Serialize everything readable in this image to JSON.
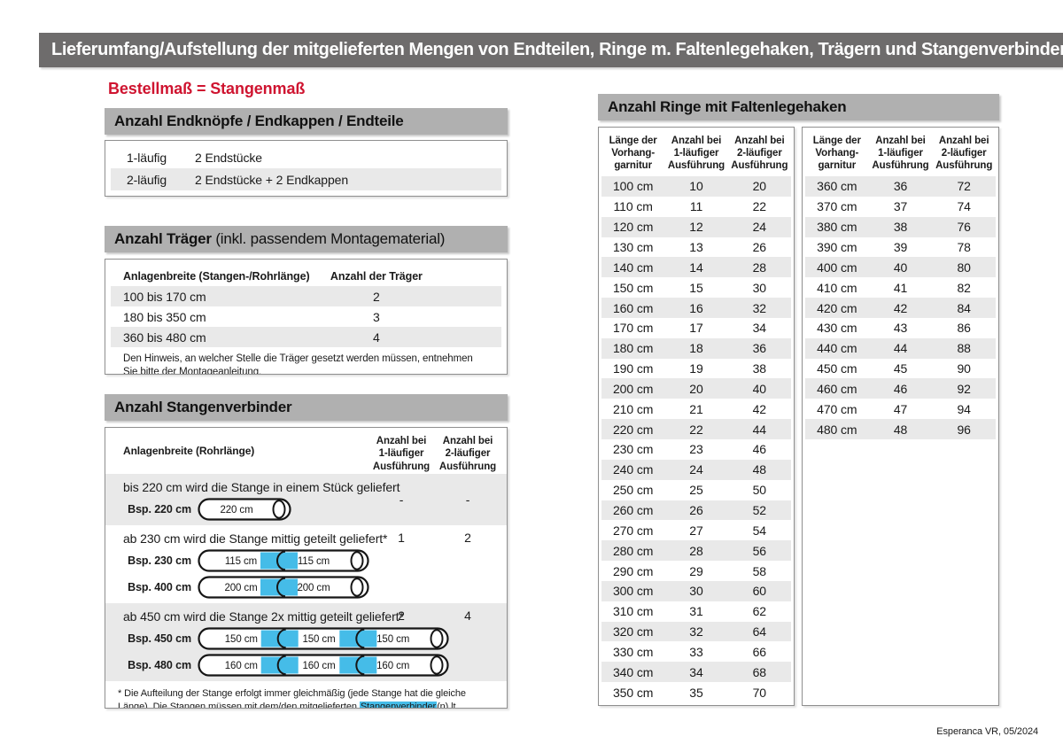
{
  "colors": {
    "banner_gray": "#6e6c6c",
    "section_bar_gray": "#b0b0b0",
    "row_stripe": "#e9e9e9",
    "accent_red": "#cf1430",
    "connector_blue": "#45bce8"
  },
  "banner": {
    "title": "Lieferumfang/Aufstellung der mitgelieferten Mengen von Endteilen, Ringe m. Faltenlegehaken, Trägern und Stangenverbindern:"
  },
  "subtitle": "Bestellmaß = Stangenmaß",
  "endteile": {
    "title": "Anzahl Endknöpfe / Endkappen / Endteile",
    "rows": [
      {
        "label": "1-läufig",
        "value": "2 Endstücke"
      },
      {
        "label": "2-läufig",
        "value": "2 Endstücke + 2 Endkappen"
      }
    ]
  },
  "traeger": {
    "title": "Anzahl Träger",
    "title_suffix": " (inkl. passendem Montagematerial)",
    "col1": "Anlagenbreite (Stangen-/Rohrlänge)",
    "col2": "Anzahl der Träger",
    "rows": [
      {
        "range": "100 bis 170 cm",
        "count": "2"
      },
      {
        "range": "180 bis 350 cm",
        "count": "3"
      },
      {
        "range": "360 bis 480 cm",
        "count": "4"
      }
    ],
    "note": "Den Hinweis, an welcher Stelle die Träger gesetzt werden müssen, entnehmen Sie bitte der Montageanleitung."
  },
  "verbinder": {
    "title": "Anzahl Stangenverbinder",
    "col1": "Anlagenbreite (Rohrlänge)",
    "col2": "Anzahl bei\n1-läufiger\nAusführung",
    "col3": "Anzahl bei\n2-läufiger\nAusführung",
    "rows": [
      {
        "text": "bis 220 cm wird die Stange in einem Stück geliefert",
        "count1": "-",
        "count2": "-",
        "rods": [
          {
            "label": "Bsp. 220 cm",
            "segments": [
              "220 cm"
            ]
          }
        ]
      },
      {
        "text": "ab 230 cm wird die Stange mittig geteilt geliefert*",
        "count1": "1",
        "count2": "2",
        "rods": [
          {
            "label": "Bsp. 230 cm",
            "segments": [
              "115 cm",
              "115 cm"
            ]
          },
          {
            "label": "Bsp. 400 cm",
            "segments": [
              "200 cm",
              "200 cm"
            ]
          }
        ]
      },
      {
        "text": "ab 450 cm wird die Stange 2x mittig geteilt geliefert*",
        "count1": "2",
        "count2": "4",
        "rods": [
          {
            "label": "Bsp. 450 cm",
            "segments": [
              "150 cm",
              "150 cm",
              "150 cm"
            ]
          },
          {
            "label": "Bsp. 480 cm",
            "segments": [
              "160 cm",
              "160 cm",
              "160 cm"
            ]
          }
        ]
      }
    ],
    "footnote": {
      "pre": "* Die Aufteilung der Stange erfolgt immer gleichmäßig (jede Stange hat die gleiche Länge). Die Stangen müssen mit dem/den mitgelieferten ",
      "highlight": "Stangenverbinder",
      "post": "(n) lt. Montageanleitung verbunden werden."
    }
  },
  "ringe": {
    "title": "Anzahl Ringe mit Faltenlegehaken",
    "col1": "Länge der\nVorhang-\ngarnitur",
    "col2": "Anzahl bei\n1-läufiger\nAusführung",
    "col3": "Anzahl bei\n2-läufiger\nAusführung",
    "table1": [
      [
        "100 cm",
        "10",
        "20"
      ],
      [
        "110 cm",
        "11",
        "22"
      ],
      [
        "120 cm",
        "12",
        "24"
      ],
      [
        "130 cm",
        "13",
        "26"
      ],
      [
        "140 cm",
        "14",
        "28"
      ],
      [
        "150 cm",
        "15",
        "30"
      ],
      [
        "160 cm",
        "16",
        "32"
      ],
      [
        "170 cm",
        "17",
        "34"
      ],
      [
        "180 cm",
        "18",
        "36"
      ],
      [
        "190 cm",
        "19",
        "38"
      ],
      [
        "200 cm",
        "20",
        "40"
      ],
      [
        "210 cm",
        "21",
        "42"
      ],
      [
        "220 cm",
        "22",
        "44"
      ],
      [
        "230 cm",
        "23",
        "46"
      ],
      [
        "240 cm",
        "24",
        "48"
      ],
      [
        "250 cm",
        "25",
        "50"
      ],
      [
        "260 cm",
        "26",
        "52"
      ],
      [
        "270 cm",
        "27",
        "54"
      ],
      [
        "280 cm",
        "28",
        "56"
      ],
      [
        "290 cm",
        "29",
        "58"
      ],
      [
        "300 cm",
        "30",
        "60"
      ],
      [
        "310 cm",
        "31",
        "62"
      ],
      [
        "320 cm",
        "32",
        "64"
      ],
      [
        "330 cm",
        "33",
        "66"
      ],
      [
        "340 cm",
        "34",
        "68"
      ],
      [
        "350 cm",
        "35",
        "70"
      ]
    ],
    "table2": [
      [
        "360 cm",
        "36",
        "72"
      ],
      [
        "370 cm",
        "37",
        "74"
      ],
      [
        "380 cm",
        "38",
        "76"
      ],
      [
        "390 cm",
        "39",
        "78"
      ],
      [
        "400 cm",
        "40",
        "80"
      ],
      [
        "410 cm",
        "41",
        "82"
      ],
      [
        "420 cm",
        "42",
        "84"
      ],
      [
        "430 cm",
        "43",
        "86"
      ],
      [
        "440 cm",
        "44",
        "88"
      ],
      [
        "450 cm",
        "45",
        "90"
      ],
      [
        "460 cm",
        "46",
        "92"
      ],
      [
        "470 cm",
        "47",
        "94"
      ],
      [
        "480 cm",
        "48",
        "96"
      ]
    ]
  },
  "footer": "Esperanca VR, 05/2024"
}
